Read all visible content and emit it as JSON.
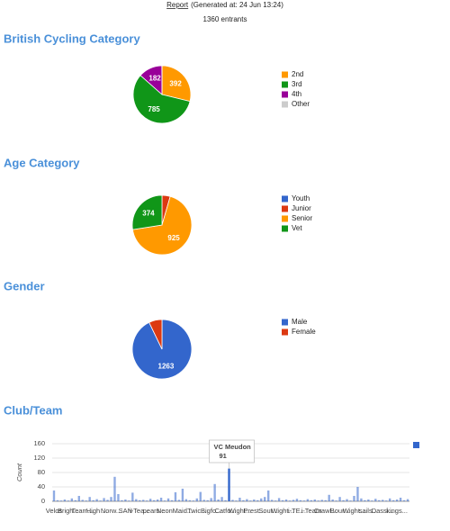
{
  "header": {
    "link": "Report",
    "generated": "(Generated at: 24 Jun 13:24)",
    "entrants": "1360 entrants"
  },
  "chart_data": [
    {
      "type": "pie",
      "title": "British Cycling Category",
      "categories": [
        "2nd",
        "3rd",
        "4th",
        "Other"
      ],
      "values": [
        392,
        785,
        182,
        1
      ],
      "colors": [
        "#ff9900",
        "#109618",
        "#990099",
        "#cccccc"
      ]
    },
    {
      "type": "pie",
      "title": "Age Category",
      "categories": [
        "Youth",
        "Junior",
        "Senior",
        "Vet"
      ],
      "values": [
        0,
        61,
        925,
        374
      ],
      "colors": [
        "#3366cc",
        "#dc3912",
        "#ff9900",
        "#109618"
      ]
    },
    {
      "type": "pie",
      "title": "Gender",
      "categories": [
        "Male",
        "Female"
      ],
      "values": [
        1263,
        97
      ],
      "colors": [
        "#3366cc",
        "#dc3912"
      ]
    },
    {
      "type": "bar",
      "title": "Club/Team",
      "ylabel": "Count",
      "color": "#3366cc",
      "ylim": [
        0,
        160
      ],
      "yticks": [
        0,
        40,
        80,
        120,
        160
      ],
      "grid": true,
      "tooltip_index": 49,
      "categories": [
        "Velos",
        null,
        null,
        null,
        "Brigh...",
        null,
        null,
        null,
        "Team...",
        null,
        null,
        null,
        "High ...",
        null,
        null,
        null,
        "Norw...",
        null,
        null,
        null,
        "SAN",
        null,
        null,
        null,
        "i-Tea...",
        null,
        null,
        null,
        "pears...",
        null,
        null,
        null,
        "Neon ...",
        null,
        null,
        null,
        "Maid...",
        null,
        null,
        null,
        "Twic...",
        null,
        null,
        null,
        "Bigfo...",
        null,
        null,
        null,
        "Catfo...",
        "VC Meudon",
        null,
        null,
        "Wight...",
        null,
        null,
        null,
        "Prest...",
        null,
        null,
        null,
        "Sout...",
        null,
        null,
        null,
        "Wight...",
        null,
        null,
        null,
        "i-TE...",
        null,
        null,
        null,
        "i-Team",
        null,
        null,
        null,
        "Crawl...",
        null,
        null,
        null,
        "Bour...",
        null,
        null,
        null,
        "Wight...",
        null,
        null,
        null,
        "sails...",
        null,
        null,
        null,
        "Dassi...",
        null,
        null,
        null,
        "kings...",
        null,
        null,
        null
      ],
      "values": [
        30,
        3,
        2,
        5,
        2,
        8,
        3,
        15,
        4,
        2,
        12,
        3,
        6,
        2,
        9,
        4,
        12,
        68,
        20,
        3,
        5,
        2,
        24,
        6,
        3,
        4,
        2,
        7,
        3,
        5,
        10,
        2,
        8,
        3,
        25,
        4,
        35,
        6,
        3,
        2,
        8,
        26,
        4,
        3,
        9,
        48,
        5,
        12,
        3,
        91,
        4,
        2,
        10,
        3,
        6,
        2,
        5,
        3,
        8,
        12,
        30,
        4,
        2,
        9,
        3,
        5,
        2,
        4,
        7,
        3,
        2,
        6,
        3,
        5,
        2,
        4,
        3,
        18,
        5,
        2,
        12,
        3,
        6,
        2,
        15,
        40,
        8,
        3,
        5,
        2,
        7,
        3,
        4,
        2,
        8,
        3,
        5,
        10,
        3,
        6
      ]
    }
  ]
}
